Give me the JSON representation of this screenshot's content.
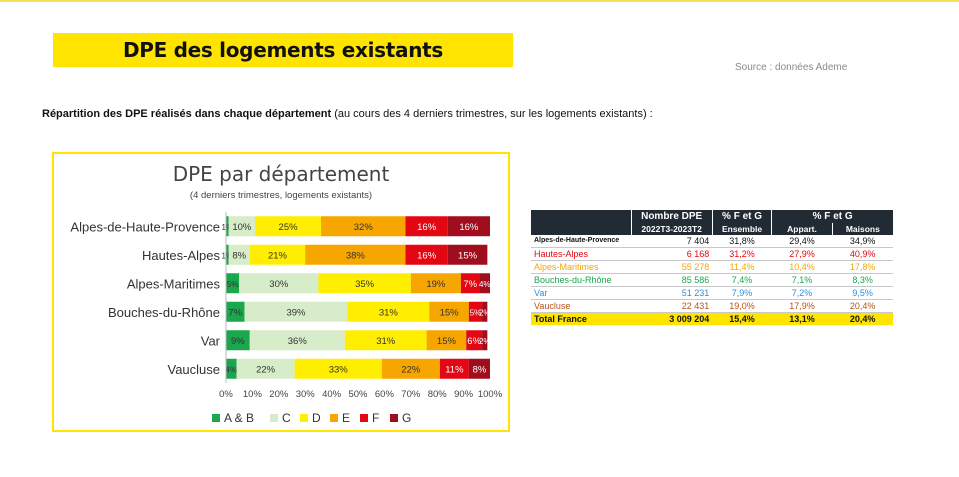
{
  "page": {
    "title": "DPE des logements existants",
    "source": "Source : données Ademe",
    "subtitle_bold": "Répartition des DPE réalisés dans chaque département",
    "subtitle_rest": " (au cours des 4 derniers trimestres, sur les logements existants) :"
  },
  "chart_data": {
    "type": "bar",
    "orientation": "horizontal-stacked-100",
    "title": "DPE par département",
    "subtitle": "(4 derniers trimestres, logements existants)",
    "categories": [
      "Alpes-de-Haute-Provence",
      "Hautes-Alpes",
      "Alpes-Maritimes",
      "Bouches-du-Rhône",
      "Var",
      "Vaucluse"
    ],
    "series": [
      {
        "name": "A & B",
        "color": "#1aa74d",
        "values": [
          1,
          1,
          5,
          7,
          9,
          4
        ],
        "labels": [
          "1%",
          "1%",
          "5%",
          "7%",
          "9%",
          "4%"
        ]
      },
      {
        "name": "C",
        "color": "#d7ecc8",
        "values": [
          10,
          8,
          30,
          39,
          36,
          22
        ],
        "labels": [
          "10%",
          "8%",
          "30%",
          "39%",
          "36%",
          "22%"
        ]
      },
      {
        "name": "D",
        "color": "#ffee00",
        "values": [
          25,
          21,
          35,
          31,
          31,
          33
        ],
        "labels": [
          "25%",
          "21%",
          "35%",
          "31%",
          "31%",
          "33%"
        ]
      },
      {
        "name": "E",
        "color": "#f7a600",
        "values": [
          32,
          38,
          19,
          15,
          15,
          22
        ],
        "labels": [
          "32%",
          "38%",
          "19%",
          "15%",
          "15%",
          "22%"
        ]
      },
      {
        "name": "F",
        "color": "#e30613",
        "values": [
          16,
          16,
          7,
          5,
          6,
          11
        ],
        "labels": [
          "16%",
          "16%",
          "7%",
          "5%",
          "6%",
          "11%"
        ]
      },
      {
        "name": "G",
        "color": "#a00d1c",
        "values": [
          16,
          15,
          4,
          2,
          2,
          8
        ],
        "labels": [
          "16%",
          "15%",
          "4%",
          "2%",
          "2%",
          "8%"
        ]
      }
    ],
    "xlim": [
      0,
      100
    ],
    "xticks": [
      "0%",
      "10%",
      "20%",
      "30%",
      "40%",
      "50%",
      "60%",
      "70%",
      "80%",
      "90%",
      "100%"
    ],
    "legend_position": "bottom",
    "grid": false
  },
  "table": {
    "header_top": [
      "Nombre DPE",
      "% F et G",
      "% F et G"
    ],
    "header_bottom": [
      "2022T3-2023T2",
      "Ensemble",
      "Appart.",
      "Maisons"
    ],
    "rows": [
      {
        "name": "Alpes-de-Haute-Provence",
        "color": "#111111",
        "nombre": "7 404",
        "ensemble": "31,8%",
        "appart": "29,4%",
        "maisons": "34,9%"
      },
      {
        "name": "Hautes-Alpes",
        "color": "#e30613",
        "nombre": "6 168",
        "ensemble": "31,2%",
        "appart": "27,9%",
        "maisons": "40,9%"
      },
      {
        "name": "Alpes-Maritimes",
        "color": "#f7a600",
        "nombre": "55 278",
        "ensemble": "11,4%",
        "appart": "10,4%",
        "maisons": "17,8%"
      },
      {
        "name": "Bouches-du-Rhône",
        "color": "#1aa74d",
        "nombre": "85 586",
        "ensemble": "7,4%",
        "appart": "7,1%",
        "maisons": "8,3%"
      },
      {
        "name": "Var",
        "color": "#2f8fd8",
        "nombre": "51 231",
        "ensemble": "7,9%",
        "appart": "7,2%",
        "maisons": "9,5%"
      },
      {
        "name": "Vaucluse",
        "color": "#b5541a",
        "nombre": "22 431",
        "ensemble": "19,0%",
        "appart": "17,9%",
        "maisons": "20,4%"
      }
    ],
    "total": {
      "name": "Total France",
      "nombre": "3 009 204",
      "ensemble": "15,4%",
      "appart": "13,1%",
      "maisons": "20,4%"
    }
  }
}
